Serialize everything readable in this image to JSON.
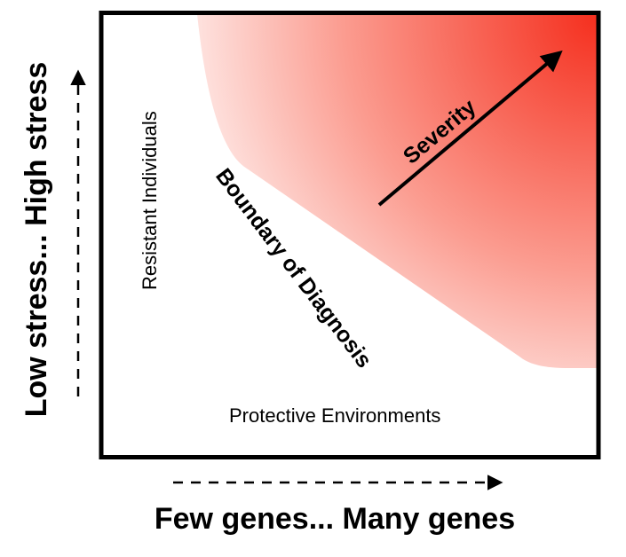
{
  "diagram": {
    "x_axis_label": "Few genes... Many genes",
    "y_axis_label": "Low stress... High stress",
    "region_labels": {
      "resistant": "Resistant Individuals",
      "boundary": "Boundary of Diagnosis",
      "protective": "Protective Environments",
      "severity": "Severity"
    },
    "colors": {
      "frame": "#000000",
      "severity_high": "#f5301f",
      "severity_low": "#ffffff"
    }
  }
}
